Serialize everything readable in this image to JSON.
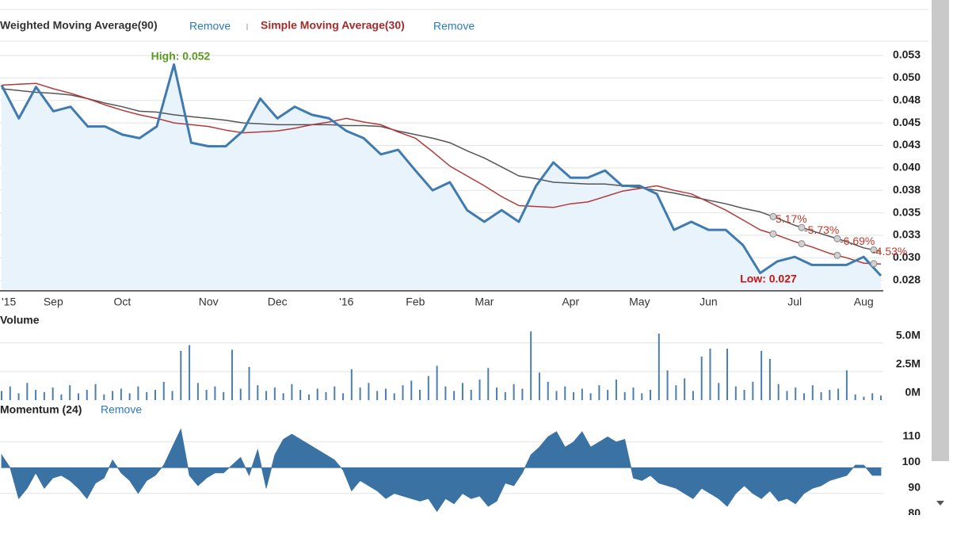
{
  "chart_data": [
    {
      "type": "line",
      "categories": [
        "'15",
        null,
        null,
        "Sep",
        null,
        null,
        null,
        "Oct",
        null,
        null,
        null,
        null,
        "Nov",
        null,
        null,
        null,
        "Dec",
        null,
        null,
        null,
        "'16",
        null,
        null,
        null,
        "Feb",
        null,
        null,
        null,
        "Mar",
        null,
        null,
        null,
        null,
        "Apr",
        null,
        null,
        null,
        "May",
        null,
        null,
        null,
        "Jun",
        null,
        null,
        null,
        null,
        "Jul",
        null,
        null,
        null,
        "Aug",
        null
      ],
      "series": [
        {
          "color": "#3f7bb0",
          "fill": "#e8f3fc",
          "values": [
            0.0492,
            0.0455,
            0.049,
            0.0463,
            0.0468,
            0.0446,
            0.0446,
            0.0437,
            0.0433,
            0.0446,
            0.0515,
            0.0428,
            0.0424,
            0.0424,
            0.0441,
            0.0477,
            0.0455,
            0.0468,
            0.0459,
            0.0455,
            0.0441,
            0.0433,
            0.0415,
            0.042,
            0.0397,
            0.0375,
            0.0384,
            0.0353,
            0.034,
            0.0353,
            0.034,
            0.038,
            0.0406,
            0.0389,
            0.0389,
            0.0397,
            0.038,
            0.038,
            0.0371,
            0.0331,
            0.034,
            0.0331,
            0.0331,
            0.0314,
            0.0283,
            0.0296,
            0.0301,
            0.0292,
            0.0292,
            0.0292,
            0.0301,
            0.028
          ]
        },
        {
          "name": "Weighted Moving Average(90)",
          "action": "Remove",
          "color": "#555555",
          "values": [
            0.0488,
            0.0486,
            0.0484,
            0.0483,
            0.0481,
            0.0477,
            0.0472,
            0.0468,
            0.0463,
            0.0462,
            0.0459,
            0.0457,
            0.0455,
            0.0453,
            0.045,
            0.0449,
            0.0448,
            0.0448,
            0.0448,
            0.0448,
            0.0447,
            0.0447,
            0.0446,
            0.0441,
            0.0437,
            0.0433,
            0.0428,
            0.0419,
            0.0411,
            0.0401,
            0.0391,
            0.0388,
            0.0384,
            0.0383,
            0.0382,
            0.0382,
            0.038,
            0.0378,
            0.0375,
            0.0372,
            0.0368,
            0.0364,
            0.036,
            0.0355,
            0.0351,
            0.0344,
            0.0336,
            0.033,
            0.0324,
            0.0318,
            0.0311,
            0.0307
          ]
        },
        {
          "name": "Simple Moving Average(30)",
          "action": "Remove",
          "color": "#b23a3a",
          "values": [
            0.0492,
            0.0493,
            0.0494,
            0.0488,
            0.0483,
            0.0477,
            0.047,
            0.0464,
            0.0459,
            0.0455,
            0.045,
            0.0448,
            0.0446,
            0.0442,
            0.0439,
            0.044,
            0.0441,
            0.0444,
            0.0448,
            0.0451,
            0.0455,
            0.0451,
            0.0448,
            0.044,
            0.0433,
            0.0418,
            0.0402,
            0.0391,
            0.038,
            0.0368,
            0.0358,
            0.0357,
            0.0356,
            0.036,
            0.0362,
            0.0368,
            0.0374,
            0.0377,
            0.038,
            0.0375,
            0.0371,
            0.0362,
            0.0353,
            0.0342,
            0.0331,
            0.0325,
            0.0318,
            0.0312,
            0.0305,
            0.03,
            0.0294,
            0.0293
          ]
        }
      ],
      "ylim": [
        0.0265,
        0.054
      ],
      "yticks": [
        {
          "value": 0.0525,
          "label": "0.053"
        },
        {
          "value": 0.05,
          "label": "0.050"
        },
        {
          "value": 0.0475,
          "label": "0.048"
        },
        {
          "value": 0.045,
          "label": "0.045"
        },
        {
          "value": 0.0425,
          "label": "0.043"
        },
        {
          "value": 0.04,
          "label": "0.040"
        },
        {
          "value": 0.0375,
          "label": "0.038"
        },
        {
          "value": 0.035,
          "label": "0.035"
        },
        {
          "value": 0.0325,
          "label": "0.033"
        },
        {
          "value": 0.03,
          "label": "0.030"
        },
        {
          "value": 0.0275,
          "label": "0.028"
        }
      ],
      "grid": true,
      "annotations": [
        "High: 0.052",
        "Low: 0.027"
      ],
      "change_labels": [
        "5.17%",
        "-5.73%",
        "-6.69%",
        "-4.53%"
      ]
    },
    {
      "type": "bar",
      "title": "Volume",
      "color": "#4a7fb0",
      "values": [
        0.8,
        1.2,
        0.6,
        1.5,
        0.9,
        0.7,
        1.1,
        0.5,
        1.3,
        0.6,
        0.9,
        1.4,
        0.5,
        0.8,
        1.0,
        0.6,
        1.2,
        0.7,
        0.9,
        1.6,
        0.8,
        4.3,
        4.8,
        1.5,
        0.9,
        1.2,
        0.7,
        4.4,
        1.0,
        2.9,
        1.3,
        0.8,
        1.1,
        0.6,
        1.4,
        0.9,
        0.5,
        1.0,
        0.7,
        1.2,
        0.6,
        2.7,
        1.1,
        1.5,
        0.8,
        1.0,
        0.6,
        1.3,
        1.7,
        0.9,
        2.1,
        3.0,
        1.2,
        0.8,
        1.5,
        0.9,
        1.8,
        2.8,
        1.1,
        0.7,
        1.4,
        1.0,
        6.0,
        2.4,
        1.6,
        0.8,
        1.2,
        0.7,
        1.0,
        0.6,
        1.3,
        0.9,
        1.8,
        0.7,
        1.1,
        0.6,
        0.9,
        5.8,
        2.6,
        1.3,
        1.9,
        0.8,
        3.8,
        4.5,
        1.5,
        4.5,
        1.2,
        0.9,
        1.6,
        4.3,
        3.6,
        1.4,
        0.8,
        1.1,
        0.6,
        1.3,
        0.7,
        0.9,
        1.0,
        2.6,
        0.5,
        0.3,
        0.6,
        0.4
      ],
      "ylim": [
        0,
        6.5
      ],
      "yticks": [
        {
          "value": 0,
          "label": "0M"
        },
        {
          "value": 2.5,
          "label": "2.5M"
        },
        {
          "value": 5,
          "label": "5.0M"
        }
      ],
      "grid": true
    },
    {
      "type": "area",
      "title": "Momentum (24)",
      "action": "Remove",
      "color": "#3a73a3",
      "baseline": 100,
      "values": [
        105,
        100,
        88,
        92,
        98,
        92,
        96,
        97,
        95,
        92,
        88,
        94,
        96,
        103,
        98,
        95,
        90,
        95,
        97,
        101,
        108,
        115,
        97,
        93,
        96,
        98,
        98,
        101,
        104,
        97,
        107,
        92,
        105,
        111,
        113,
        111,
        109,
        107,
        105,
        103,
        99,
        91,
        95,
        93,
        91,
        88,
        90,
        89,
        88,
        87,
        88,
        83,
        88,
        86,
        90,
        88,
        89,
        85,
        87,
        94,
        93,
        98,
        105,
        108,
        112,
        114,
        108,
        110,
        114,
        108,
        110,
        112,
        110,
        111,
        96,
        95,
        97,
        94,
        93,
        92,
        90,
        88,
        92,
        90,
        88,
        85,
        90,
        93,
        90,
        88,
        91,
        87,
        88,
        86,
        90,
        92,
        93,
        95,
        96,
        97,
        101,
        101,
        97,
        97
      ],
      "ylim": [
        81,
        117
      ],
      "yticks": [
        110,
        100,
        90,
        80
      ],
      "grid": true
    }
  ]
}
